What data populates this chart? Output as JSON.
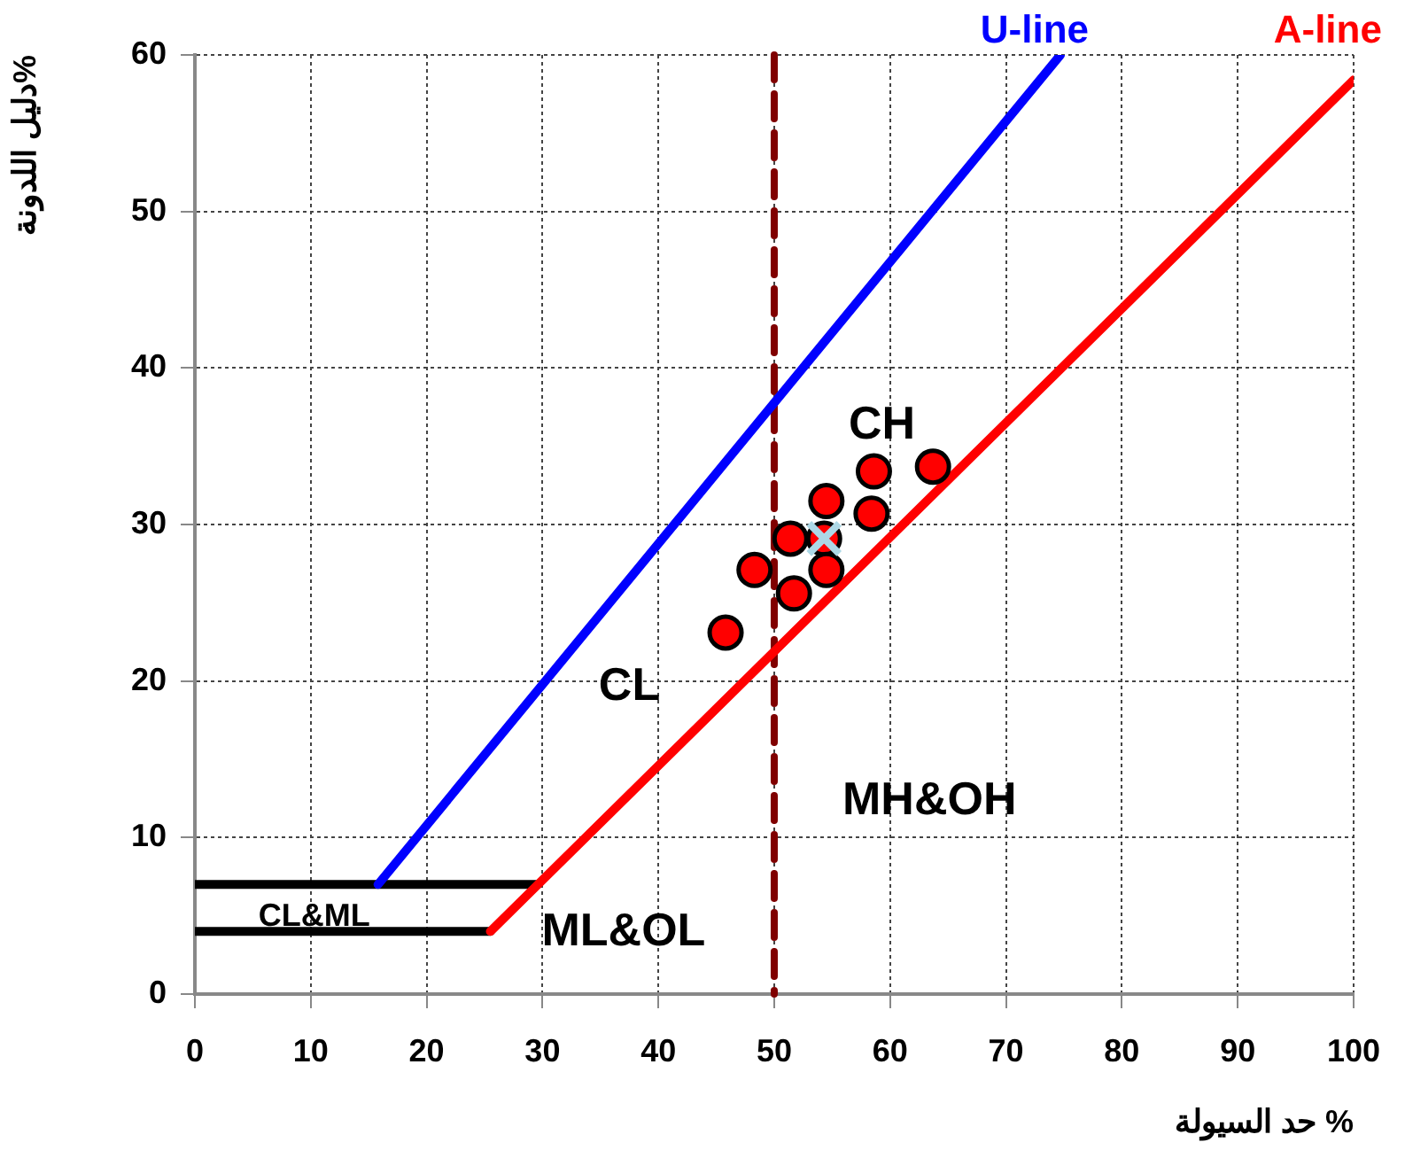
{
  "chart_data": {
    "type": "scatter",
    "xlabel": "حد السيولة %",
    "ylabel": "دليل اللدونة%",
    "xlim": [
      0,
      100
    ],
    "ylim": [
      0,
      60
    ],
    "xticks": [
      0,
      10,
      20,
      30,
      40,
      50,
      60,
      70,
      80,
      90,
      100
    ],
    "yticks": [
      0,
      10,
      20,
      30,
      40,
      50,
      60
    ],
    "grid": true,
    "legend": false,
    "series": [
      {
        "type": "line",
        "color": "#000000",
        "x": [
          0,
          29.6
        ],
        "values": [
          7,
          7
        ]
      },
      {
        "type": "line",
        "color": "#000000",
        "x": [
          0,
          25.5
        ],
        "values": [
          4,
          4
        ]
      },
      {
        "name": "U-line",
        "type": "line",
        "color": "#0000ff",
        "x": [
          15.8,
          74.7
        ],
        "values": [
          7,
          60
        ]
      },
      {
        "name": "A-line",
        "type": "line",
        "color": "#ff0000",
        "x": [
          25.5,
          100
        ],
        "values": [
          4,
          58.4
        ]
      },
      {
        "type": "scatter",
        "marker": "circle",
        "color": "#ff0000",
        "x": [
          45.8,
          48.3,
          51.4,
          51.7,
          54.3,
          54.5,
          54.5,
          58.4,
          58.6,
          63.7
        ],
        "values": [
          23.1,
          27.1,
          29.1,
          25.6,
          29.1,
          31.5,
          27.1,
          30.7,
          33.4,
          33.7
        ]
      },
      {
        "type": "scatter",
        "marker": "cross",
        "color": "#add8e6",
        "x": [
          54.3
        ],
        "values": [
          29.1
        ]
      }
    ],
    "ref_lines": [
      {
        "axis": "x",
        "value": 50,
        "color": "#800000",
        "line_style": "dashed"
      }
    ],
    "annotations": [
      "CH",
      "CL",
      "MH&OH",
      "ML&OL",
      "CL&ML"
    ]
  }
}
